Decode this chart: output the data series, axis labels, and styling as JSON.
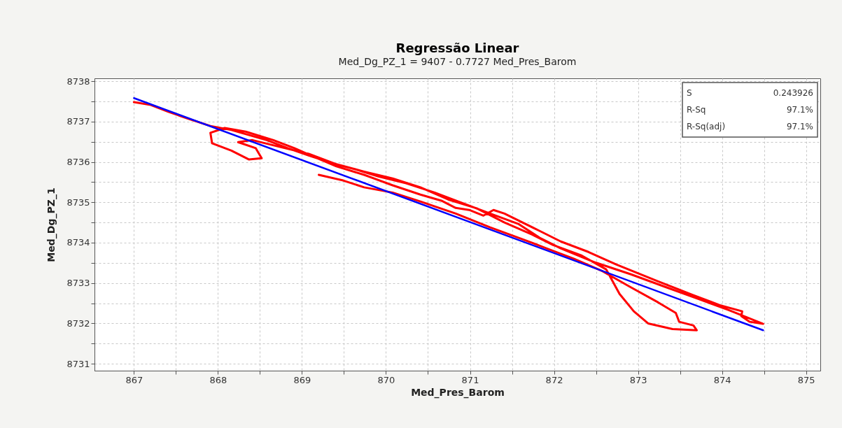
{
  "chart_data": {
    "type": "line",
    "title": "Regressão Linear",
    "subtitle": "Med_Dg_PZ_1 =  9407 - 0.7727 Med_Pres_Barom",
    "xlabel": "Med_Pres_Barom",
    "ylabel": "Med_Dg_PZ_1",
    "xlim": [
      866.53,
      875.17
    ],
    "ylim": [
      8730.83,
      8738.07
    ],
    "xticks": [
      867,
      {
        "value": 867.5,
        "label": null
      },
      868,
      {
        "value": 868.5,
        "label": null
      },
      869,
      {
        "value": 869.5,
        "label": null
      },
      870,
      {
        "value": 870.5,
        "label": null
      },
      871,
      {
        "value": 871.5,
        "label": null
      },
      872,
      {
        "value": 872.5,
        "label": null
      },
      873,
      {
        "value": 873.5,
        "label": null
      },
      874,
      {
        "value": 874.5,
        "label": null
      },
      875
    ],
    "yticks": [
      8731,
      {
        "value": 8731.5,
        "label": null
      },
      8732,
      {
        "value": 8732.5,
        "label": null
      },
      8733,
      {
        "value": 8733.5,
        "label": null
      },
      8734,
      {
        "value": 8734.5,
        "label": null
      },
      8735,
      {
        "value": 8735.5,
        "label": null
      },
      8736,
      {
        "value": 8736.5,
        "label": null
      },
      8737,
      {
        "value": 8737.5,
        "label": null
      },
      8738
    ],
    "grid": true,
    "line_style": "solid",
    "marker": "none",
    "annotations": [
      "S",
      "0.243926",
      "R-Sq",
      "97.1%",
      "R-Sq(adj)",
      "97.1%"
    ],
    "series": [
      {
        "color": "#ff0000",
        "x": [
          867.0,
          867.2,
          867.41,
          867.66,
          867.91,
          868.16,
          868.58,
          868.83,
          869.08,
          869.33,
          869.58,
          869.91,
          870.24,
          870.58,
          870.91,
          871.24,
          871.58,
          871.83,
          872.08,
          872.49,
          872.91,
          873.33,
          873.74,
          874.08,
          874.49,
          874.33,
          874.23,
          874.24,
          873.99,
          873.66,
          873.24,
          872.74,
          872.41,
          872.08,
          871.83,
          871.41,
          871.28,
          871.16,
          870.99,
          870.83,
          870.66,
          870.41,
          870.08,
          869.74,
          869.41,
          869.16,
          868.91,
          868.66,
          868.33,
          868.08,
          867.91,
          867.93,
          868.16,
          868.37,
          868.52,
          868.45,
          868.24,
          868.41,
          868.74,
          869.08,
          869.41,
          869.74,
          870.08,
          870.41,
          870.74,
          871.08,
          871.41,
          871.74,
          871.99,
          872.33,
          872.62,
          872.78,
          872.95,
          873.12,
          873.41,
          873.7,
          873.66,
          873.49,
          873.45,
          873.24,
          872.91,
          872.58,
          872.24,
          871.91,
          871.58,
          871.24,
          870.83,
          870.41,
          870.08,
          869.74,
          869.49,
          869.2
        ],
        "values": [
          8737.48,
          8737.41,
          8737.24,
          8737.06,
          8736.89,
          8736.79,
          8736.54,
          8736.34,
          8736.16,
          8735.99,
          8735.85,
          8735.64,
          8735.47,
          8735.24,
          8734.98,
          8734.72,
          8734.46,
          8734.12,
          8733.86,
          8733.51,
          8733.22,
          8732.9,
          8732.59,
          8732.33,
          8731.99,
          8732.04,
          8732.18,
          8732.3,
          8732.44,
          8732.7,
          8733.04,
          8733.46,
          8733.77,
          8734.03,
          8734.29,
          8734.72,
          8734.81,
          8734.67,
          8734.81,
          8734.86,
          8735.04,
          8735.19,
          8735.42,
          8735.68,
          8735.89,
          8736.11,
          8736.34,
          8736.54,
          8736.75,
          8736.84,
          8736.72,
          8736.46,
          8736.28,
          8736.06,
          8736.09,
          8736.34,
          8736.49,
          8736.54,
          8736.37,
          8736.2,
          8735.94,
          8735.76,
          8735.59,
          8735.37,
          8735.07,
          8734.85,
          8734.5,
          8734.2,
          8733.94,
          8733.68,
          8733.34,
          8732.73,
          8732.3,
          8732.0,
          8731.86,
          8731.83,
          8731.95,
          8732.04,
          8732.26,
          8732.52,
          8732.9,
          8733.29,
          8733.6,
          8733.86,
          8734.12,
          8734.38,
          8734.72,
          8735.02,
          8735.24,
          8735.37,
          8735.54,
          8735.68
        ]
      },
      {
        "color": "#0000ff",
        "x": [
          867.0,
          874.49
        ],
        "values": [
          8737.58,
          8731.83
        ]
      }
    ]
  }
}
